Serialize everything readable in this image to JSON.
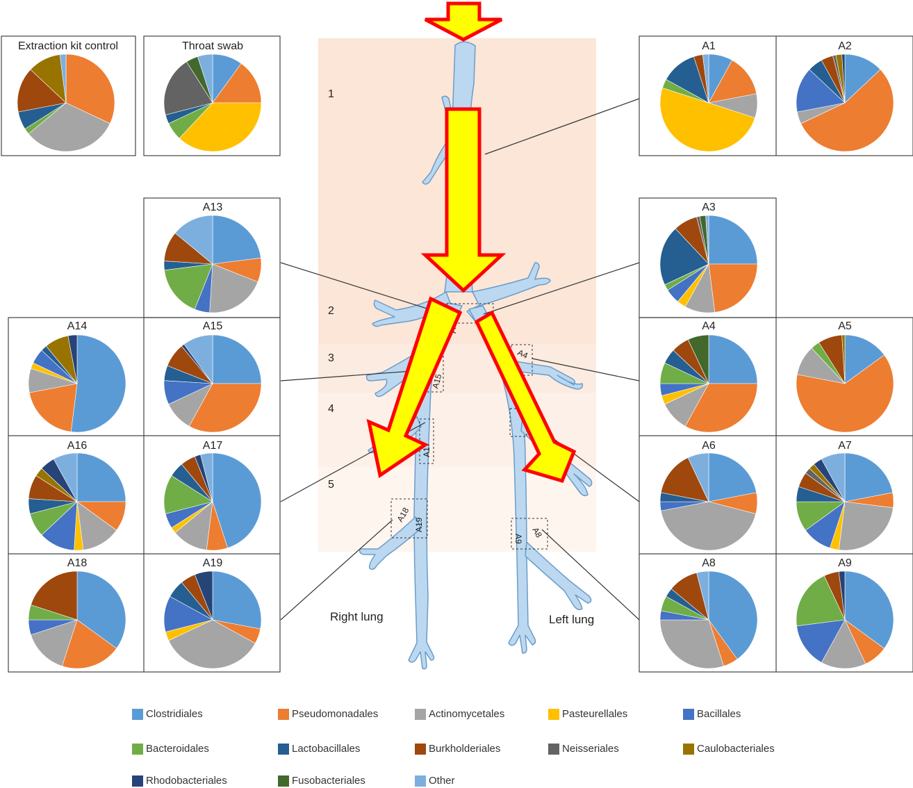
{
  "legend": [
    {
      "name": "Clostridiales",
      "color": "#5B9BD5"
    },
    {
      "name": "Pseudomonadales",
      "color": "#ED7D31"
    },
    {
      "name": "Actinomycetales",
      "color": "#A5A5A5"
    },
    {
      "name": "Pasteurellales",
      "color": "#FFC000"
    },
    {
      "name": "Bacillales",
      "color": "#4472C4"
    },
    {
      "name": "Bacteroidales",
      "color": "#70AD47"
    },
    {
      "name": "Lactobacillales",
      "color": "#255E91"
    },
    {
      "name": "Burkholderiales",
      "color": "#9E480E"
    },
    {
      "name": "Neisseriales",
      "color": "#636363"
    },
    {
      "name": "Caulobacteriales",
      "color": "#997300"
    },
    {
      "name": "Rhodobacteriales",
      "color": "#264478"
    },
    {
      "name": "Fusobacteriales",
      "color": "#43682B"
    },
    {
      "name": "Other",
      "color": "#7CAFDD"
    }
  ],
  "zones": [
    "1",
    "2",
    "3",
    "4",
    "5"
  ],
  "lung_labels": {
    "right": "Right lung",
    "left": "Left lung"
  },
  "site_labels": [
    "A13",
    "A15",
    "A17",
    "A18",
    "A19",
    "A4",
    "A9",
    "A8"
  ],
  "chart_data": [
    {
      "type": "pie",
      "title": "Extraction kit control",
      "values": [
        0,
        32,
        32,
        0,
        0,
        2,
        6,
        15,
        0,
        11,
        0,
        0,
        2
      ]
    },
    {
      "type": "pie",
      "title": "Throat swab",
      "values": [
        10,
        15,
        0,
        37,
        0,
        6,
        3,
        0,
        20,
        0,
        0,
        4,
        5
      ]
    },
    {
      "type": "pie",
      "title": "A1",
      "values": [
        8,
        14,
        8,
        50,
        0,
        3,
        12,
        3,
        0,
        0,
        0,
        0,
        2
      ]
    },
    {
      "type": "pie",
      "title": "A2",
      "values": [
        13,
        55,
        4,
        0,
        15,
        0,
        5,
        4,
        1,
        2,
        1,
        0,
        0
      ]
    },
    {
      "type": "pie",
      "title": "A13",
      "values": [
        23,
        8,
        20,
        0,
        5,
        17,
        3,
        10,
        0,
        0,
        0,
        0,
        14
      ]
    },
    {
      "type": "pie",
      "title": "A3",
      "values": [
        25,
        23,
        10,
        3,
        5,
        2,
        20,
        8,
        1,
        0,
        0,
        2,
        1
      ]
    },
    {
      "type": "pie",
      "title": "A14",
      "values": [
        52,
        20,
        8,
        2,
        5,
        0,
        2,
        0,
        0,
        8,
        3,
        0,
        0
      ]
    },
    {
      "type": "pie",
      "title": "A15",
      "values": [
        25,
        33,
        10,
        0,
        8,
        0,
        5,
        8,
        0,
        0,
        1,
        0,
        10
      ]
    },
    {
      "type": "pie",
      "title": "A4",
      "values": [
        25,
        33,
        10,
        3,
        4,
        7,
        5,
        6,
        0,
        0,
        0,
        7,
        0
      ]
    },
    {
      "type": "pie",
      "title": "A5",
      "values": [
        15,
        63,
        10,
        0,
        0,
        3,
        0,
        8,
        0,
        1,
        0,
        0,
        0
      ]
    },
    {
      "type": "pie",
      "title": "A16",
      "values": [
        25,
        10,
        13,
        3,
        12,
        8,
        5,
        8,
        0,
        3,
        5,
        0,
        8
      ]
    },
    {
      "type": "pie",
      "title": "A17",
      "values": [
        45,
        7,
        12,
        2,
        5,
        13,
        5,
        5,
        0,
        0,
        2,
        0,
        4
      ]
    },
    {
      "type": "pie",
      "title": "A6",
      "values": [
        22,
        7,
        43,
        0,
        3,
        0,
        3,
        15,
        0,
        0,
        0,
        0,
        7
      ]
    },
    {
      "type": "pie",
      "title": "A7",
      "values": [
        22,
        5,
        25,
        3,
        10,
        10,
        5,
        5,
        2,
        2,
        3,
        0,
        8
      ]
    },
    {
      "type": "pie",
      "title": "A18",
      "values": [
        35,
        20,
        15,
        0,
        5,
        5,
        0,
        20,
        0,
        0,
        0,
        0,
        0
      ]
    },
    {
      "type": "pie",
      "title": "A19",
      "values": [
        28,
        5,
        35,
        3,
        12,
        0,
        6,
        5,
        0,
        0,
        6,
        0,
        0
      ]
    },
    {
      "type": "pie",
      "title": "A8",
      "values": [
        40,
        5,
        30,
        0,
        3,
        5,
        3,
        10,
        0,
        0,
        0,
        0,
        4
      ]
    },
    {
      "type": "pie",
      "title": "A9",
      "values": [
        35,
        8,
        15,
        0,
        15,
        20,
        0,
        5,
        0,
        0,
        2,
        0,
        0
      ]
    }
  ]
}
